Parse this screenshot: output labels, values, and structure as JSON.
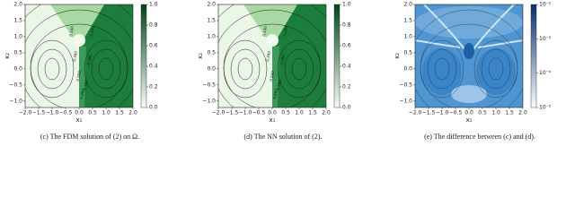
{
  "chart_data": [
    {
      "type": "heatmap",
      "caption": "(c) The FDM solution of (2) on Ω.",
      "xlabel": "x₁",
      "ylabel": "x₂",
      "xlim": [
        -2,
        2
      ],
      "ylim": [
        -1.2,
        2
      ],
      "xticks": [
        {
          "value": -2,
          "label": "−2.0"
        },
        {
          "value": -1.5,
          "label": "−1.5"
        },
        {
          "value": -1,
          "label": "−1.0"
        },
        {
          "value": -0.5,
          "label": "−0.5"
        },
        {
          "value": 0,
          "label": "0.0"
        },
        0.5,
        {
          "value": 1,
          "label": "1.0"
        },
        1.5,
        {
          "value": 2,
          "label": "2.0"
        }
      ],
      "yticks": [
        {
          "value": -1,
          "label": "−1.0"
        },
        {
          "value": -0.5,
          "label": "−0.5"
        },
        {
          "value": 0,
          "label": "0.0"
        },
        0.5,
        {
          "value": 1,
          "label": "1.0"
        },
        1.5,
        {
          "value": 2,
          "label": "2.0"
        }
      ],
      "colorbar": {
        "colors": [
          "#f7fcf5",
          "#00441b"
        ],
        "clim": [
          0,
          1
        ],
        "ticks": [
          {
            "value": 0,
            "label": "0.0"
          },
          0.2,
          0.4,
          0.6,
          0.8,
          {
            "value": 1,
            "label": "1.0"
          }
        ]
      },
      "contour_labels": [
        "0.100",
        "0.300",
        "0.500",
        "0.900",
        "0.100",
        "0.300",
        "0.500"
      ]
    },
    {
      "type": "heatmap",
      "caption": "(d) The NN solution of (2).",
      "xlabel": "x₁",
      "ylabel": "x₂",
      "xlim": [
        -2,
        2
      ],
      "ylim": [
        -1.2,
        2
      ],
      "xticks": [
        {
          "value": -2,
          "label": "−2.0"
        },
        {
          "value": -1.5,
          "label": "−1.5"
        },
        {
          "value": -1,
          "label": "−1.0"
        },
        {
          "value": -0.5,
          "label": "−0.5"
        },
        {
          "value": 0,
          "label": "0.0"
        },
        0.5,
        {
          "value": 1,
          "label": "1.0"
        },
        1.5,
        {
          "value": 2,
          "label": "2.0"
        }
      ],
      "yticks": [
        {
          "value": -1,
          "label": "−1.0"
        },
        {
          "value": -0.5,
          "label": "−0.5"
        },
        {
          "value": 0,
          "label": "0.0"
        },
        0.5,
        {
          "value": 1,
          "label": "1.0"
        },
        1.5,
        {
          "value": 2,
          "label": "2.0"
        }
      ],
      "colorbar": {
        "colors": [
          "#f7fcf5",
          "#00441b"
        ],
        "clim": [
          0,
          1
        ],
        "ticks": [
          {
            "value": 0,
            "label": "0.0"
          },
          0.2,
          0.4,
          0.6,
          0.8,
          {
            "value": 1,
            "label": "1.0"
          }
        ]
      },
      "contour_labels": [
        "0.100",
        "0.300",
        "0.500",
        "0.900",
        "0.100",
        "0.300",
        "0.500"
      ]
    },
    {
      "type": "heatmap",
      "caption": "(e) The difference between (c) and (d).",
      "xlabel": "x₁",
      "ylabel": "x₂",
      "xlim": [
        -2,
        2
      ],
      "ylim": [
        -1.2,
        2
      ],
      "xticks": [
        {
          "value": -2,
          "label": "−2.0"
        },
        {
          "value": -1.5,
          "label": "−1.5"
        },
        {
          "value": -1,
          "label": "−1.0"
        },
        {
          "value": -0.5,
          "label": "−0.5"
        },
        {
          "value": 0,
          "label": "0.0"
        },
        0.5,
        {
          "value": 1,
          "label": "1.0"
        },
        1.5,
        {
          "value": 2,
          "label": "2.0"
        }
      ],
      "yticks": [
        {
          "value": -1,
          "label": "−1.0"
        },
        {
          "value": -0.5,
          "label": "−0.5"
        },
        {
          "value": 0,
          "label": "0.0"
        },
        0.5,
        {
          "value": 1,
          "label": "1.0"
        },
        1.5,
        {
          "value": 2,
          "label": "2.0"
        }
      ],
      "colorbar": {
        "colors": [
          "#f7fbff",
          "#08306b"
        ],
        "clim": [
          1e-05,
          0.01
        ],
        "scale": "log",
        "ticks": [
          {
            "value": 1e-05,
            "label": "10⁻⁵"
          },
          {
            "value": 0.0001,
            "label": "10⁻⁴"
          },
          {
            "value": 0.001,
            "label": "10⁻³"
          },
          {
            "value": 0.01,
            "label": "10⁻²"
          }
        ]
      }
    }
  ]
}
